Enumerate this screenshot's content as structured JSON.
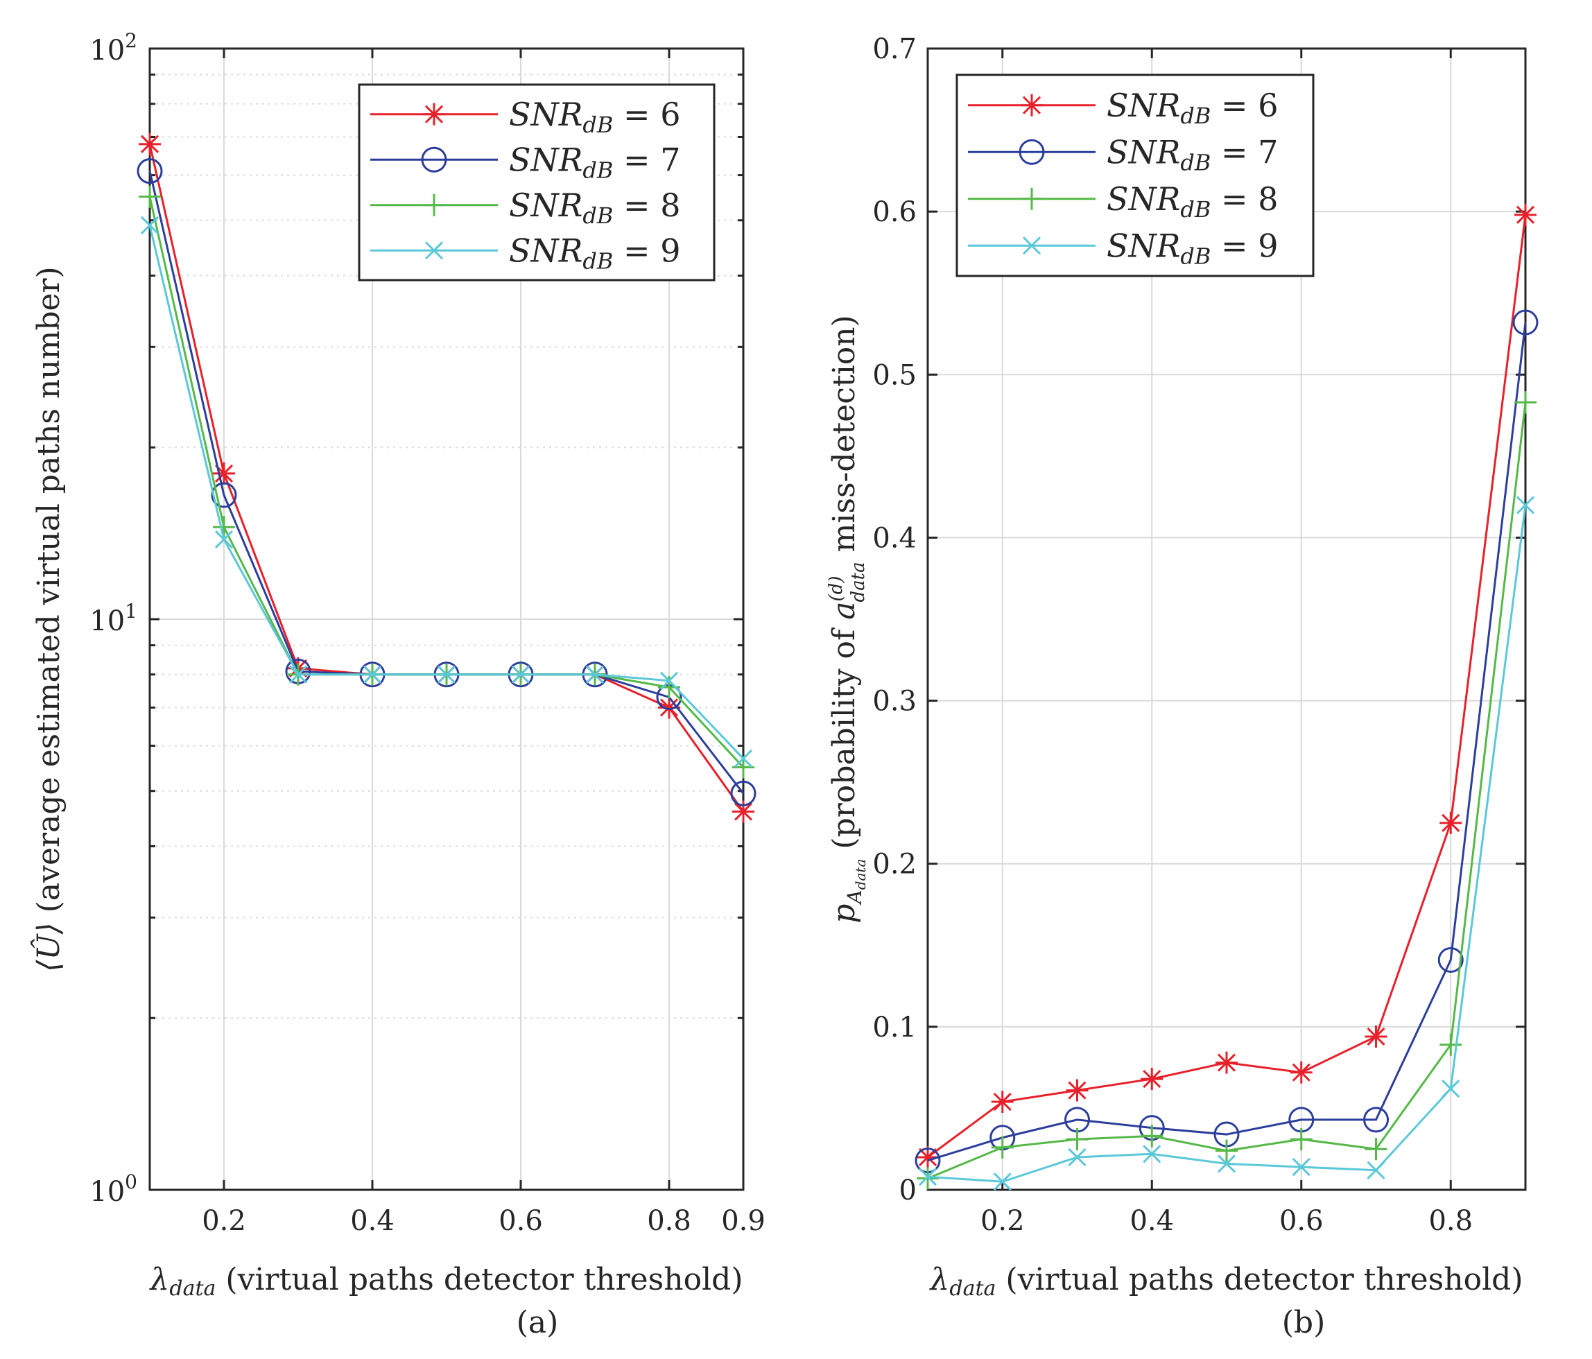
{
  "colors": {
    "snr6": "#e8202a",
    "snr7": "#2c3e9c",
    "snr8": "#54b947",
    "snr9": "#5ac8d8",
    "axis": "#262626",
    "grid": "#d9d9d9"
  },
  "chart_data": [
    {
      "id": "a",
      "type": "line",
      "yscale": "log",
      "caption": "(a)",
      "xlabel_main": "λ",
      "xlabel_sub": "data",
      "xlabel_rest": " (virtual paths detector threshold)",
      "ylabel_main": "⟨Û⟩",
      "ylabel_rest": " (average estimated virtual paths number)",
      "xlim": [
        0.1,
        0.9
      ],
      "ylim": [
        1,
        100
      ],
      "xticks": [
        0.2,
        0.4,
        0.6,
        0.8,
        0.9
      ],
      "xtick_labels": [
        "0.2",
        "0.4",
        "0.6",
        "0.8",
        "0.9"
      ],
      "yticks": [
        1,
        10,
        100
      ],
      "ytick_base": [
        "10",
        "10",
        "10"
      ],
      "ytick_exp": [
        "0",
        "1",
        "2"
      ],
      "x": [
        0.1,
        0.2,
        0.3,
        0.4,
        0.5,
        0.6,
        0.7,
        0.8,
        0.9
      ],
      "legend_position": "top-right",
      "series": [
        {
          "name": "SNR",
          "sub": "dB",
          "eq": " = 6",
          "color_key": "snr6",
          "marker": "star",
          "values": [
            68,
            18,
            8.2,
            8,
            8,
            8,
            8,
            7,
            4.6
          ]
        },
        {
          "name": "SNR",
          "sub": "dB",
          "eq": " = 7",
          "color_key": "snr7",
          "marker": "circle",
          "values": [
            61,
            16.5,
            8.1,
            8,
            8,
            8,
            8,
            7.3,
            4.95
          ]
        },
        {
          "name": "SNR",
          "sub": "dB",
          "eq": " = 8",
          "color_key": "snr8",
          "marker": "plus",
          "values": [
            55,
            14.5,
            8,
            8,
            8,
            8,
            8,
            7.6,
            5.5
          ]
        },
        {
          "name": "SNR",
          "sub": "dB",
          "eq": " = 9",
          "color_key": "snr9",
          "marker": "x",
          "values": [
            49,
            13.8,
            8,
            8,
            8,
            8,
            8,
            7.8,
            5.7
          ]
        }
      ]
    },
    {
      "id": "b",
      "type": "line",
      "yscale": "linear",
      "caption": "(b)",
      "xlabel_main": "λ",
      "xlabel_sub": "data",
      "xlabel_rest": " (virtual paths detector threshold)",
      "ylabel_main": "p",
      "ylabel_sub": "A",
      "ylabel_subsub": "data",
      "ylabel_rest": " (probability of ",
      "ylabel_a": "a",
      "ylabel_a_sup": "(d)",
      "ylabel_a_sub": "data",
      "ylabel_end": " miss-detection)",
      "xlim": [
        0.1,
        0.9
      ],
      "ylim": [
        0,
        0.7
      ],
      "xticks": [
        0.2,
        0.4,
        0.6,
        0.8
      ],
      "xtick_labels": [
        "0.2",
        "0.4",
        "0.6",
        "0.8"
      ],
      "yticks": [
        0,
        0.1,
        0.2,
        0.3,
        0.4,
        0.5,
        0.6,
        0.7
      ],
      "ytick_labels": [
        "0",
        "0.1",
        "0.2",
        "0.3",
        "0.4",
        "0.5",
        "0.6",
        "0.7"
      ],
      "x": [
        0.1,
        0.2,
        0.3,
        0.4,
        0.5,
        0.6,
        0.7,
        0.8,
        0.9
      ],
      "legend_position": "top-left",
      "series": [
        {
          "name": "SNR",
          "sub": "dB",
          "eq": " = 6",
          "color_key": "snr6",
          "marker": "star",
          "values": [
            0.02,
            0.054,
            0.061,
            0.068,
            0.078,
            0.072,
            0.094,
            0.225,
            0.598
          ]
        },
        {
          "name": "SNR",
          "sub": "dB",
          "eq": " = 7",
          "color_key": "snr7",
          "marker": "circle",
          "values": [
            0.018,
            0.032,
            0.043,
            0.038,
            0.034,
            0.043,
            0.043,
            0.141,
            0.532
          ]
        },
        {
          "name": "SNR",
          "sub": "dB",
          "eq": " = 8",
          "color_key": "snr8",
          "marker": "plus",
          "values": [
            0.007,
            0.026,
            0.031,
            0.033,
            0.024,
            0.031,
            0.025,
            0.089,
            0.483
          ]
        },
        {
          "name": "SNR",
          "sub": "dB",
          "eq": " = 9",
          "color_key": "snr9",
          "marker": "x",
          "values": [
            0.008,
            0.005,
            0.02,
            0.022,
            0.016,
            0.014,
            0.012,
            0.062,
            0.42
          ]
        }
      ]
    }
  ]
}
